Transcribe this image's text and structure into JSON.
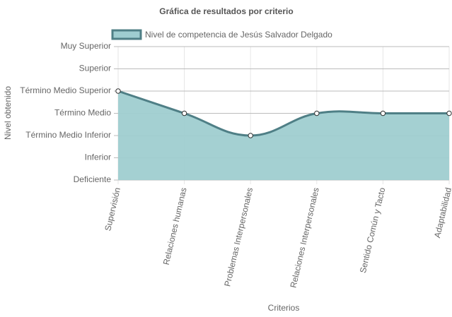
{
  "chart_data": {
    "type": "line",
    "title": "Gráfica de resultados por criterio",
    "x_label": "Criterios",
    "y_label": "Nivel obtenido",
    "categories": [
      "Supervisión",
      "Relaciones humanas",
      "Problemas Interpersonales",
      "Relaciones Interpersonales",
      "Sentido Común y Tacto",
      "Adaptabilidad"
    ],
    "series": [
      {
        "name": "Nivel de competencia de Jesús Salvador Delgado",
        "color": "#4f7f86",
        "fill": "#9fcdd0",
        "values": [
          4,
          3,
          2,
          3,
          3,
          3
        ]
      }
    ],
    "ylim": [
      0,
      6
    ],
    "yticks": [
      {
        "value": 0,
        "label": "Deficiente"
      },
      {
        "value": 1,
        "label": "Inferior"
      },
      {
        "value": 2,
        "label": "Término Medio Inferior"
      },
      {
        "value": 3,
        "label": "Término Medio"
      },
      {
        "value": 4,
        "label": "Término Medio Superior"
      },
      {
        "value": 5,
        "label": "Superior"
      },
      {
        "value": 6,
        "label": "Muy Superior"
      }
    ],
    "grid": true,
    "legend": "top"
  }
}
